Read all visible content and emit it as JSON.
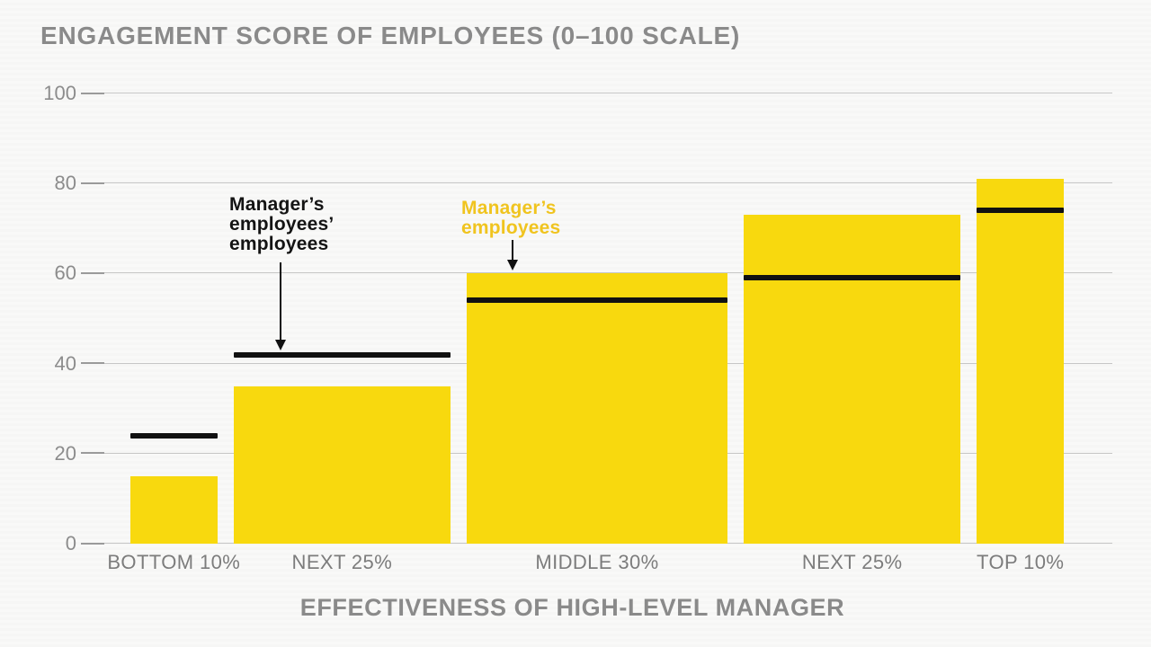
{
  "chart_data": {
    "type": "bar",
    "title": "ENGAGEMENT SCORE OF EMPLOYEES (0–100 SCALE)",
    "xlabel": "EFFECTIVENESS OF HIGH-LEVEL MANAGER",
    "ylabel": "",
    "categories": [
      "BOTTOM 10%",
      "NEXT 25%",
      "MIDDLE 30%",
      "NEXT 25%",
      "TOP 10%"
    ],
    "category_width_shares": [
      10,
      25,
      30,
      25,
      10
    ],
    "ylim": [
      0,
      100
    ],
    "yticks": [
      0,
      20,
      40,
      60,
      80,
      100
    ],
    "grid": true,
    "legend_position": "inline-annotations-with-arrows",
    "series": [
      {
        "name": "Manager’s employees",
        "type": "bar",
        "color": "#F8D90E",
        "values": [
          15,
          35,
          60,
          73,
          81
        ]
      },
      {
        "name": "Manager’s employees’ employees",
        "type": "dash-marker",
        "color": "#111111",
        "values": [
          24,
          42,
          54,
          59,
          74
        ]
      }
    ]
  },
  "annotations": {
    "black": {
      "lines": [
        "Manager’s",
        "employees’",
        "employees"
      ],
      "series": "Manager’s employees’ employees",
      "points_to_value": 42,
      "points_to_category": "NEXT 25%"
    },
    "yellow": {
      "lines": [
        "Manager’s",
        "employees"
      ],
      "series": "Manager’s employees",
      "points_to_value": 60,
      "points_to_category": "MIDDLE 30%"
    }
  },
  "colors": {
    "background": "#F7F7F6",
    "bar_yellow": "#F8D90E",
    "marker_black": "#111111",
    "title_gray": "#8A8A8A",
    "ytick_gray": "#8C8C8C",
    "xlabel_gray": "#7C7C7C",
    "gridline_gray": "#C6C6C6",
    "annotation_yellow_text": "#F0C41F",
    "annotation_black_text": "#141414"
  }
}
